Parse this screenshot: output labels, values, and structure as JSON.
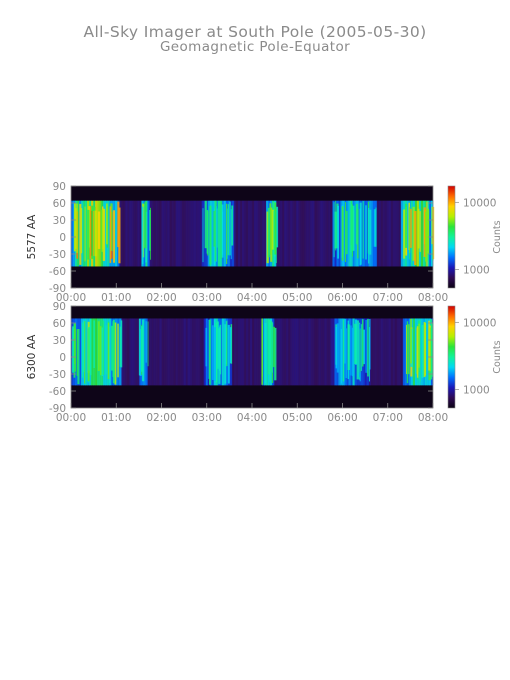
{
  "header": {
    "title": "All-Sky Imager at South Pole (2005-05-30)",
    "subtitle": "Geomagnetic Pole-Equator"
  },
  "colors": {
    "background": "#ffffff",
    "text": "#8a8a8a",
    "panel_bg": "#37175c",
    "colormap": [
      "#0b0315",
      "#2e0a54",
      "#1a18b8",
      "#0070ff",
      "#00d9f2",
      "#10f39a",
      "#2ae63a",
      "#b6f000",
      "#ffd200",
      "#ff6a00",
      "#d10000"
    ]
  },
  "chart_data": [
    {
      "type": "heatmap",
      "ylabel": "5577 AA",
      "colorbar_label": "Counts",
      "colorbar_ticks": [
        "10000",
        "1000"
      ],
      "colorbar_scale": "log",
      "x_ticks": [
        "00:00",
        "01:00",
        "02:00",
        "03:00",
        "04:00",
        "05:00",
        "06:00",
        "07:00",
        "08:00"
      ],
      "y_ticks": [
        "90",
        "60",
        "30",
        "0",
        "-30",
        "-60",
        "-90"
      ],
      "xlim": [
        0,
        8
      ],
      "ylim": [
        -90,
        90
      ],
      "intensity_level": 0.55,
      "data_band": [
        -52,
        64
      ],
      "aurora_features": [
        {
          "start": 0.0,
          "end": 1.05,
          "level": 0.68
        },
        {
          "start": 1.55,
          "end": 1.75,
          "level": 0.5
        },
        {
          "start": 2.9,
          "end": 3.6,
          "level": 0.45
        },
        {
          "start": 4.3,
          "end": 4.55,
          "level": 0.52
        },
        {
          "start": 5.8,
          "end": 6.75,
          "level": 0.45
        },
        {
          "start": 7.3,
          "end": 8.0,
          "level": 0.62
        }
      ]
    },
    {
      "type": "heatmap",
      "ylabel": "6300 AA",
      "colorbar_label": "Counts",
      "colorbar_ticks": [
        "10000",
        "1000"
      ],
      "colorbar_scale": "log",
      "x_ticks": [
        "00:00",
        "01:00",
        "02:00",
        "03:00",
        "04:00",
        "05:00",
        "06:00",
        "07:00",
        "08:00"
      ],
      "y_ticks": [
        "90",
        "60",
        "30",
        "0",
        "-30",
        "-60",
        "-90"
      ],
      "xlim": [
        0,
        8
      ],
      "ylim": [
        -90,
        90
      ],
      "intensity_level": 0.45,
      "data_band": [
        -50,
        68
      ],
      "aurora_features": [
        {
          "start": 0.0,
          "end": 1.1,
          "level": 0.52
        },
        {
          "start": 1.5,
          "end": 1.7,
          "level": 0.44
        },
        {
          "start": 2.95,
          "end": 3.55,
          "level": 0.42
        },
        {
          "start": 4.2,
          "end": 4.5,
          "level": 0.46
        },
        {
          "start": 5.75,
          "end": 6.6,
          "level": 0.4
        },
        {
          "start": 7.35,
          "end": 8.0,
          "level": 0.55
        }
      ]
    }
  ]
}
